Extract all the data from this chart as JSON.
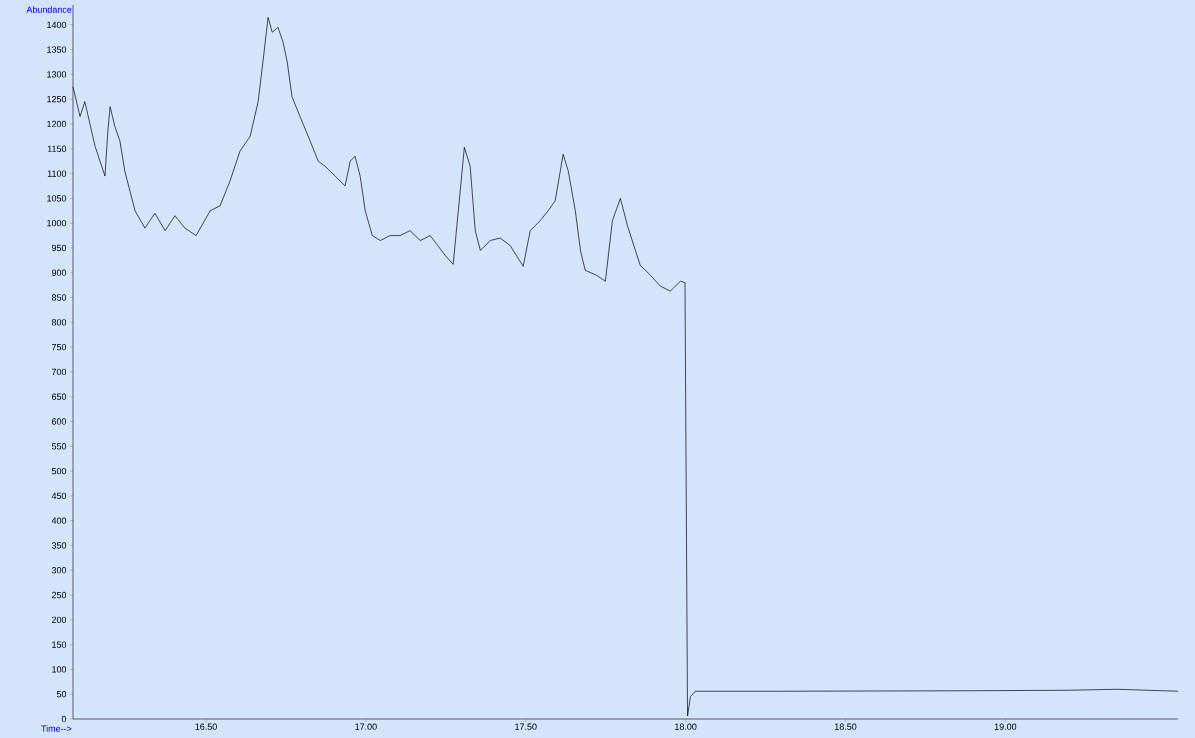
{
  "chart_data": {
    "type": "line",
    "xlabel": "Time-->",
    "ylabel": "Abundance",
    "xlim": [
      16.084,
      19.54
    ],
    "ylim": [
      0,
      1440
    ],
    "xticks": [
      {
        "value": 16.5,
        "label": "16.50"
      },
      {
        "value": 17.0,
        "label": "17.00"
      },
      {
        "value": 17.5,
        "label": "17.50"
      },
      {
        "value": 18.0,
        "label": "18.00"
      },
      {
        "value": 18.5,
        "label": "18.50"
      },
      {
        "value": 19.0,
        "label": "19.00"
      }
    ],
    "yticks": [
      0,
      50,
      100,
      150,
      200,
      250,
      300,
      350,
      400,
      450,
      500,
      550,
      600,
      650,
      700,
      750,
      800,
      850,
      900,
      950,
      1000,
      1050,
      1100,
      1150,
      1200,
      1250,
      1300,
      1350,
      1400
    ],
    "grid": false,
    "marker": "none",
    "line_style": "solid",
    "series": [
      {
        "color": "#000000",
        "x": [
          16.084,
          16.106,
          16.121,
          16.153,
          16.184,
          16.193,
          16.2,
          16.215,
          16.231,
          16.246,
          16.278,
          16.309,
          16.34,
          16.372,
          16.403,
          16.434,
          16.469,
          16.513,
          16.544,
          16.575,
          16.606,
          16.638,
          16.663,
          16.678,
          16.694,
          16.707,
          16.725,
          16.741,
          16.754,
          16.769,
          16.794,
          16.826,
          16.851,
          16.872,
          16.904,
          16.935,
          16.951,
          16.966,
          16.982,
          16.998,
          17.02,
          17.045,
          17.076,
          17.107,
          17.138,
          17.17,
          17.201,
          17.248,
          17.273,
          17.308,
          17.326,
          17.342,
          17.358,
          17.389,
          17.42,
          17.451,
          17.492,
          17.514,
          17.545,
          17.57,
          17.592,
          17.617,
          17.633,
          17.655,
          17.671,
          17.686,
          17.721,
          17.749,
          17.771,
          17.796,
          17.818,
          17.843,
          17.858,
          17.89,
          17.921,
          17.952,
          17.984,
          17.998,
          18.002,
          18.006,
          18.015,
          18.03,
          18.3,
          18.9,
          19.2,
          19.35,
          19.54
        ],
        "values": [
          1275,
          1215,
          1245,
          1155,
          1095,
          1185,
          1235,
          1195,
          1165,
          1105,
          1025,
          990,
          1020,
          985,
          1015,
          990,
          975,
          1025,
          1035,
          1085,
          1145,
          1175,
          1245,
          1325,
          1415,
          1385,
          1395,
          1365,
          1325,
          1255,
          1215,
          1165,
          1125,
          1115,
          1095,
          1075,
          1125,
          1135,
          1095,
          1025,
          975,
          965,
          975,
          975,
          985,
          965,
          975,
          935,
          917,
          1153,
          1115,
          985,
          945,
          965,
          970,
          955,
          913,
          985,
          1005,
          1025,
          1045,
          1139,
          1105,
          1025,
          945,
          905,
          895,
          883,
          1005,
          1050,
          995,
          945,
          915,
          895,
          873,
          863,
          883,
          880,
          440,
          6,
          45,
          56,
          56,
          57,
          58,
          60,
          56
        ]
      }
    ]
  }
}
